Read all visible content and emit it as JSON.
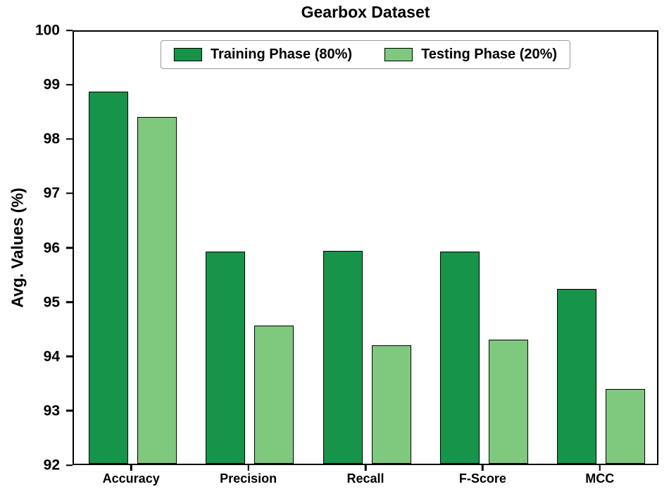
{
  "chart_data": {
    "type": "bar",
    "title": "Gearbox Dataset",
    "xlabel": "",
    "ylabel": "Avg. Values (%)",
    "categories": [
      "Accuracy",
      "Precision",
      "Recall",
      "F-Score",
      "MCC"
    ],
    "series": [
      {
        "name": "Training Phase (80%)",
        "color": "#16944a",
        "values": [
          98.84,
          95.9,
          95.92,
          95.9,
          95.22
        ]
      },
      {
        "name": "Testing Phase (20%)",
        "color": "#7fc97f",
        "values": [
          98.38,
          94.54,
          94.18,
          94.28,
          93.37
        ]
      }
    ],
    "ylim": [
      92,
      100
    ],
    "yticks": [
      92,
      93,
      94,
      95,
      96,
      97,
      98,
      99,
      100
    ],
    "grid": false,
    "legend_position": "upper center inside",
    "bar_edge_color": "#000000",
    "background_color": "#ffffff"
  }
}
